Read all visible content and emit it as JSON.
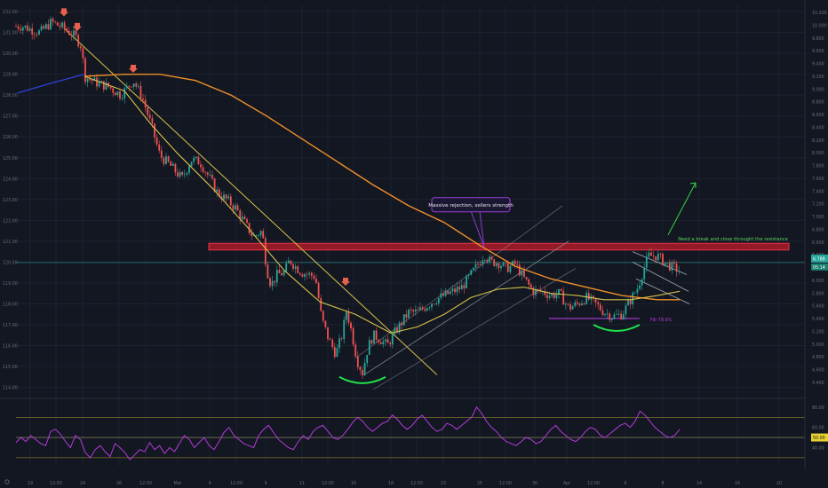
{
  "colors": {
    "background": "#131722",
    "grid": "#1e2230",
    "up": "#26a69a",
    "down": "#ef5350",
    "ma_fast": "#d4c24a",
    "ma_slow": "#ef8f2a",
    "rsi": "#b23bd8",
    "resistance": "#b71c2b",
    "channel": "#8c909b",
    "neutral": "#cfd2db"
  },
  "icons": [
    "arrow-down-marker-icon",
    "settings-gear-icon"
  ],
  "chart_data": {
    "type": "candlestick",
    "left_axis_ticks": [
      "132.00",
      "131.00",
      "130.00",
      "129.00",
      "128.00",
      "127.00",
      "126.00",
      "125.00",
      "124.00",
      "123.00",
      "122.00",
      "121.00",
      "120.00",
      "119.00",
      "118.00",
      "117.00",
      "116.00",
      "115.00",
      "114.00"
    ],
    "right_axis_ticks": [
      "10.200",
      "10.000",
      "9.800",
      "9.600",
      "9.400",
      "9.200",
      "9.000",
      "8.800",
      "8.600",
      "8.400",
      "8.200",
      "8.000",
      "7.800",
      "7.600",
      "7.400",
      "7.200",
      "7.000",
      "6.800",
      "6.600",
      "6.400",
      "6.200",
      "6.000",
      "5.800",
      "5.600",
      "5.400",
      "5.200",
      "5.000",
      "4.800",
      "4.600",
      "4.400"
    ],
    "ylim_left": [
      113.6,
      132.3
    ],
    "x_ticks": [
      "19",
      "12:00",
      "24",
      "26",
      "12:00",
      "Mar",
      "4",
      "12:00",
      "9",
      "11",
      "12:00",
      "16",
      "18",
      "12:00",
      "23",
      "25",
      "12:00",
      "30",
      "Apr",
      "12:00",
      "6",
      "8",
      "14",
      "16",
      "20"
    ],
    "price_path": [
      [
        0,
        131.3
      ],
      [
        25,
        131.3
      ],
      [
        45,
        131.0
      ],
      [
        58,
        131.5
      ],
      [
        72,
        131.2
      ],
      [
        85,
        130.8
      ],
      [
        92,
        130.3
      ],
      [
        95,
        128.9
      ],
      [
        108,
        128.6
      ],
      [
        122,
        128.4
      ],
      [
        136,
        128.0
      ],
      [
        150,
        128.7
      ],
      [
        160,
        127.9
      ],
      [
        170,
        126.6
      ],
      [
        180,
        125.1
      ],
      [
        190,
        124.7
      ],
      [
        205,
        124.0
      ],
      [
        215,
        124.9
      ],
      [
        225,
        124.8
      ],
      [
        235,
        124.1
      ],
      [
        245,
        123.3
      ],
      [
        255,
        123.0
      ],
      [
        265,
        122.6
      ],
      [
        275,
        121.9
      ],
      [
        285,
        121.2
      ],
      [
        295,
        121.5
      ],
      [
        300,
        119.7
      ],
      [
        305,
        118.9
      ],
      [
        312,
        119.4
      ],
      [
        320,
        119.5
      ],
      [
        326,
        120.1
      ],
      [
        332,
        119.8
      ],
      [
        340,
        119.5
      ],
      [
        348,
        119.4
      ],
      [
        355,
        119.3
      ],
      [
        362,
        117.3
      ],
      [
        370,
        116.3
      ],
      [
        378,
        115.6
      ],
      [
        385,
        116.5
      ],
      [
        390,
        117.7
      ],
      [
        396,
        116.6
      ],
      [
        402,
        115.3
      ],
      [
        408,
        114.7
      ],
      [
        414,
        115.9
      ],
      [
        420,
        116.5
      ],
      [
        428,
        116.3
      ],
      [
        436,
        116.0
      ],
      [
        444,
        116.6
      ],
      [
        452,
        117.1
      ],
      [
        460,
        117.6
      ],
      [
        470,
        117.6
      ],
      [
        480,
        117.9
      ],
      [
        490,
        118.2
      ],
      [
        500,
        118.4
      ],
      [
        510,
        118.6
      ],
      [
        520,
        118.8
      ],
      [
        530,
        119.4
      ],
      [
        538,
        119.9
      ],
      [
        545,
        120.4
      ],
      [
        552,
        120.0
      ],
      [
        560,
        120.0
      ],
      [
        570,
        119.7
      ],
      [
        580,
        119.9
      ],
      [
        590,
        119.2
      ],
      [
        600,
        118.6
      ],
      [
        610,
        118.6
      ],
      [
        620,
        118.4
      ],
      [
        630,
        118.5
      ],
      [
        640,
        117.8
      ],
      [
        650,
        118.0
      ],
      [
        660,
        118.3
      ],
      [
        670,
        118.0
      ],
      [
        680,
        117.6
      ],
      [
        690,
        117.4
      ],
      [
        700,
        117.5
      ],
      [
        710,
        118.2
      ],
      [
        718,
        118.8
      ],
      [
        724,
        119.6
      ],
      [
        730,
        120.3
      ],
      [
        740,
        120.3
      ],
      [
        750,
        119.9
      ],
      [
        760,
        119.7
      ],
      [
        765,
        119.6
      ]
    ],
    "last_price_left": "119.98",
    "last_price_right_labels": [
      "6.788",
      "05:14"
    ],
    "ma_fast": [
      [
        95,
        128.9
      ],
      [
        140,
        128.2
      ],
      [
        170,
        126.6
      ],
      [
        200,
        125.2
      ],
      [
        240,
        123.5
      ],
      [
        280,
        121.6
      ],
      [
        320,
        119.6
      ],
      [
        360,
        118.1
      ],
      [
        400,
        117.5
      ],
      [
        440,
        116.6
      ],
      [
        470,
        116.9
      ],
      [
        500,
        117.5
      ],
      [
        530,
        118.3
      ],
      [
        560,
        118.7
      ],
      [
        590,
        118.8
      ],
      [
        620,
        118.5
      ],
      [
        650,
        118.4
      ],
      [
        680,
        118.2
      ],
      [
        710,
        118.2
      ],
      [
        740,
        118.4
      ],
      [
        765,
        118.6
      ]
    ],
    "ma_slow": [
      [
        95,
        128.9
      ],
      [
        140,
        129.0
      ],
      [
        180,
        129.0
      ],
      [
        220,
        128.7
      ],
      [
        260,
        128.0
      ],
      [
        300,
        127.0
      ],
      [
        340,
        125.9
      ],
      [
        380,
        124.8
      ],
      [
        420,
        123.7
      ],
      [
        460,
        122.7
      ],
      [
        500,
        121.9
      ],
      [
        540,
        120.8
      ],
      [
        580,
        119.8
      ],
      [
        620,
        119.2
      ],
      [
        660,
        118.8
      ],
      [
        700,
        118.4
      ],
      [
        740,
        118.2
      ],
      [
        765,
        118.2
      ]
    ],
    "blue_ma": [
      [
        20,
        128.1
      ],
      [
        60,
        128.6
      ],
      [
        95,
        129.0
      ]
    ],
    "resistance_zone": {
      "from_x": 235,
      "to_x": 888,
      "top": 120.9,
      "bottom": 120.58
    },
    "trendline_down": [
      [
        72,
        131.2
      ],
      [
        492,
        114.6
      ]
    ],
    "channel_lines": [
      [
        [
          400,
          115.4
        ],
        [
          633,
          122.7
        ]
      ],
      [
        [
          410,
          114.6
        ],
        [
          640,
          121.0
        ]
      ],
      [
        [
          420,
          113.9
        ],
        [
          648,
          119.7
        ]
      ]
    ],
    "wedge_lines": [
      [
        [
          712,
          120.5
        ],
        [
          773,
          119.4
        ]
      ],
      [
        [
          712,
          120.0
        ],
        [
          775,
          118.6
        ]
      ],
      [
        [
          716,
          119.2
        ],
        [
          776,
          118.0
        ]
      ]
    ],
    "green_arcs": [
      {
        "from_x": 382,
        "to_x": 434,
        "y": 114.5
      },
      {
        "from_x": 668,
        "to_x": 720,
        "y": 117.0
      }
    ],
    "purple_support": {
      "from_x": 618,
      "to_x": 720,
      "y": 117.3,
      "label": "Fib 78.6%"
    },
    "sell_arrows": [
      [
        72,
        131.9
      ],
      [
        87,
        131.2
      ],
      [
        150,
        129.2
      ],
      [
        389,
        119.0
      ]
    ],
    "annotations": [
      {
        "name": "massive-rejection-label",
        "text": "Massive rejection, sellers strength",
        "x": 530,
        "y": 122.75
      },
      {
        "name": "breakout-note",
        "text": "Need a break and close throught the resistance",
        "x": 825,
        "y": 120.9,
        "color": "#5cd65c"
      }
    ],
    "target_arrow": [
      [
        752,
        121.3
      ],
      [
        783,
        123.8
      ]
    ],
    "rsi": {
      "ylim": [
        22,
        86
      ],
      "levels": [
        70,
        50,
        30
      ],
      "ticks": [
        "80.00",
        "60.00",
        "40.00"
      ],
      "last_label": "50.00",
      "values": [
        45,
        50,
        46,
        52,
        48,
        44,
        42,
        56,
        58,
        53,
        46,
        40,
        52,
        48,
        35,
        30,
        38,
        42,
        36,
        31,
        44,
        40,
        35,
        28,
        33,
        38,
        36,
        45,
        38,
        42,
        34,
        40,
        36,
        44,
        52,
        48,
        40,
        45,
        50,
        42,
        38,
        46,
        55,
        60,
        52,
        48,
        44,
        42,
        40,
        52,
        58,
        62,
        55,
        48,
        44,
        40,
        38,
        46,
        52,
        48,
        56,
        60,
        62,
        56,
        50,
        48,
        52,
        58,
        65,
        70,
        66,
        60,
        56,
        60,
        64,
        66,
        72,
        68,
        62,
        58,
        62,
        68,
        72,
        66,
        60,
        56,
        58,
        64,
        62,
        58,
        62,
        66,
        70,
        80,
        74,
        66,
        60,
        56,
        50,
        46,
        44,
        42,
        46,
        50,
        48,
        44,
        46,
        52,
        58,
        62,
        56,
        52,
        48,
        46,
        50,
        56,
        60,
        58,
        52,
        50,
        54,
        58,
        62,
        64,
        60,
        66,
        76,
        72,
        66,
        60,
        56,
        52,
        50,
        52,
        58
      ]
    }
  }
}
